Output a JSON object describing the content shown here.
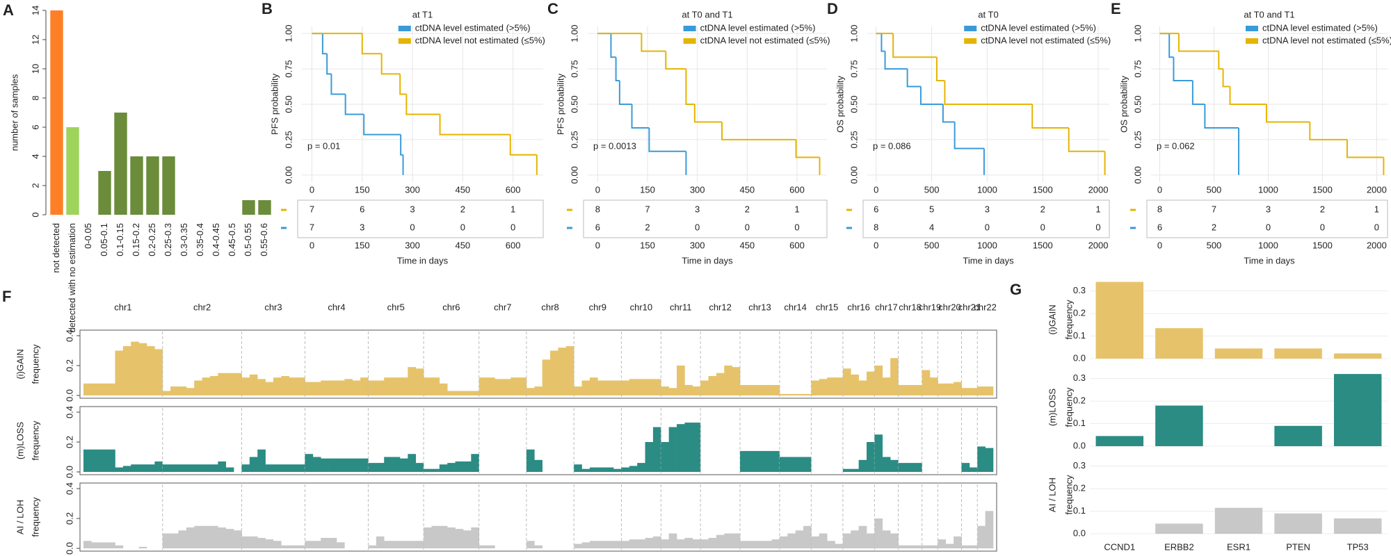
{
  "chart_data": [
    {
      "type": "bar",
      "label": "A",
      "ylabel": "number of samples",
      "categories": [
        "not detected",
        "detected with no estimation",
        "0-0.05",
        "0.05-0.1",
        "0.1-0.15",
        "0.15-0.2",
        "0.2-0.25",
        "0.25-0.3",
        "0.3-0.35",
        "0.35-0.4",
        "0.4-0.45",
        "0.45-0.5",
        "0.5-0.55",
        "0.55-0.6"
      ],
      "values": [
        14,
        6,
        0,
        3,
        7,
        4,
        4,
        4,
        0,
        0,
        0,
        0,
        1,
        1
      ],
      "colors": [
        "#ff7f27",
        "#9ed45c",
        "#6b8c3a",
        "#6b8c3a",
        "#6b8c3a",
        "#6b8c3a",
        "#6b8c3a",
        "#6b8c3a",
        "#6b8c3a",
        "#6b8c3a",
        "#6b8c3a",
        "#6b8c3a",
        "#6b8c3a",
        "#6b8c3a"
      ],
      "ylim": [
        0,
        14
      ],
      "yticks": [
        0,
        2,
        4,
        6,
        8,
        10,
        12,
        14
      ]
    },
    {
      "type": "km",
      "label": "B",
      "title": "at T1",
      "ylabel": "PFS probability",
      "xlabel": "Time in days",
      "annotation": "p = 0.01",
      "xlim": [
        -30,
        690
      ],
      "xticks": [
        0,
        150,
        300,
        450,
        600
      ],
      "ylim": [
        -0.05,
        1.05
      ],
      "yticks": [
        {
          "value": 0,
          "label": "0.00"
        },
        {
          "value": 0.25,
          "label": "0.25"
        },
        {
          "value": 0.5,
          "label": "0.50"
        },
        {
          "value": 0.75,
          "label": "0.75"
        },
        {
          "value": 1,
          "label": "1.00"
        }
      ],
      "grid": true,
      "series": [
        {
          "name": "ctDNA level estimated (>5%)",
          "color": "#3a9ad9",
          "x": [
            0,
            32,
            45,
            58,
            100,
            155,
            265,
            272
          ],
          "values": [
            1,
            0.857,
            0.714,
            0.571,
            0.429,
            0.286,
            0.143,
            0
          ],
          "at_risk": [
            7,
            3,
            0,
            0,
            0
          ]
        },
        {
          "name": "ctDNA level not estimated (≤5%)",
          "color": "#e6b400",
          "x": [
            0,
            150,
            208,
            263,
            282,
            382,
            592,
            671
          ],
          "values": [
            1,
            0.857,
            0.714,
            0.571,
            0.429,
            0.286,
            0.143,
            0
          ],
          "at_risk": [
            7,
            6,
            3,
            2,
            1
          ]
        }
      ]
    },
    {
      "type": "km",
      "label": "C",
      "title": "at T0 and T1",
      "ylabel": "PFS probability",
      "xlabel": "Time in days",
      "annotation": "p = 0.0013",
      "xlim": [
        -30,
        690
      ],
      "xticks": [
        0,
        150,
        300,
        450,
        600
      ],
      "ylim": [
        -0.05,
        1.05
      ],
      "yticks": [
        {
          "value": 0,
          "label": "0.00"
        },
        {
          "value": 0.25,
          "label": "0.25"
        },
        {
          "value": 0.5,
          "label": "0.50"
        },
        {
          "value": 0.75,
          "label": "0.75"
        },
        {
          "value": 1,
          "label": "1.00"
        }
      ],
      "grid": true,
      "series": [
        {
          "name": "ctDNA level estimated (>5%)",
          "color": "#3a9ad9",
          "x": [
            0,
            40,
            55,
            66,
            103,
            155,
            266
          ],
          "values": [
            1,
            0.833,
            0.667,
            0.5,
            0.333,
            0.167,
            0
          ],
          "at_risk": [
            6,
            2,
            0,
            0,
            0
          ]
        },
        {
          "name": "ctDNA level not estimated (≤5%)",
          "color": "#e6b400",
          "x": [
            0,
            132,
            205,
            266,
            292,
            374,
            597,
            668
          ],
          "values": [
            1,
            0.875,
            0.75,
            0.5,
            0.375,
            0.25,
            0.125,
            0
          ],
          "at_risk": [
            8,
            7,
            3,
            2,
            1
          ]
        }
      ]
    },
    {
      "type": "km",
      "label": "D",
      "title": "at T0",
      "ylabel": "OS probability",
      "xlabel": "Time in days",
      "annotation": "p = 0.086",
      "xlim": [
        -80,
        2100
      ],
      "xticks": [
        0,
        500,
        1000,
        1500,
        2000
      ],
      "ylim": [
        -0.05,
        1.05
      ],
      "yticks": [
        {
          "value": 0,
          "label": "0.00"
        },
        {
          "value": 0.25,
          "label": "0.25"
        },
        {
          "value": 0.5,
          "label": "0.50"
        },
        {
          "value": 0.75,
          "label": "0.75"
        },
        {
          "value": 1,
          "label": "1.00"
        }
      ],
      "grid": true,
      "series": [
        {
          "name": "ctDNA level estimated (>5%)",
          "color": "#3a9ad9",
          "x": [
            0,
            48,
            80,
            281,
            402,
            602,
            707,
            972
          ],
          "values": [
            1,
            0.875,
            0.75,
            0.625,
            0.5,
            0.375,
            0.1875,
            0
          ],
          "at_risk": [
            8,
            4,
            0,
            0,
            0
          ]
        },
        {
          "name": "ctDNA level not estimated (≤5%)",
          "color": "#e6b400",
          "x": [
            0,
            153,
            546,
            618,
            1406,
            1735,
            2060
          ],
          "values": [
            1,
            0.833,
            0.667,
            0.5,
            0.333,
            0.167,
            0
          ],
          "at_risk": [
            6,
            5,
            3,
            2,
            1
          ]
        }
      ]
    },
    {
      "type": "km",
      "label": "E",
      "title": "at T0 and T1",
      "ylabel": "OS probability",
      "xlabel": "Time in days",
      "annotation": "p = 0.062",
      "xlim": [
        -80,
        2100
      ],
      "xticks": [
        0,
        500,
        1000,
        1500,
        2000
      ],
      "ylim": [
        -0.05,
        1.05
      ],
      "yticks": [
        {
          "value": 0,
          "label": "0.00"
        },
        {
          "value": 0.25,
          "label": "0.25"
        },
        {
          "value": 0.5,
          "label": "0.50"
        },
        {
          "value": 0.75,
          "label": "0.75"
        },
        {
          "value": 1,
          "label": "1.00"
        }
      ],
      "grid": true,
      "series": [
        {
          "name": "ctDNA level estimated (>5%)",
          "color": "#3a9ad9",
          "x": [
            0,
            88,
            128,
            304,
            416,
            728
          ],
          "values": [
            1,
            0.833,
            0.667,
            0.5,
            0.333,
            0
          ],
          "at_risk": [
            6,
            2,
            0,
            0,
            0
          ]
        },
        {
          "name": "ctDNA level not estimated (≤5%)",
          "color": "#e6b400",
          "x": [
            0,
            176,
            544,
            584,
            648,
            984,
            1384,
            1728,
            2064
          ],
          "values": [
            1,
            0.875,
            0.75,
            0.625,
            0.5,
            0.375,
            0.25,
            0.125,
            0
          ],
          "at_risk": [
            8,
            7,
            3,
            2,
            1
          ]
        }
      ]
    },
    {
      "type": "genome",
      "label": "F",
      "chromosomes": [
        "chr1",
        "chr2",
        "chr3",
        "chr4",
        "chr5",
        "chr6",
        "chr7",
        "chr8",
        "chr9",
        "chr10",
        "chr11",
        "chr12",
        "chr13",
        "chr14",
        "chr15",
        "chr16",
        "chr17",
        "chr18",
        "chr19",
        "chr20",
        "chr21",
        "chr22"
      ],
      "ylim": [
        0,
        0.4
      ],
      "yticks": [
        {
          "value": 0,
          "label": "0.0"
        },
        {
          "value": 0.2,
          "label": "0.2"
        },
        {
          "value": 0.4,
          "label": "0.4"
        }
      ],
      "rows": [
        {
          "ylabel": [
            "(i)GAIN",
            "frequency"
          ],
          "color": "#e6c36a",
          "values": [
            [
              0.08,
              0.08,
              0.08,
              0.08,
              0.3,
              0.33,
              0.36,
              0.35,
              0.33,
              0.31
            ],
            [
              0.03,
              0.06,
              0.06,
              0.05,
              0.1,
              0.12,
              0.13,
              0.15,
              0.15,
              0.15
            ],
            [
              0.12,
              0.14,
              0.11,
              0.09,
              0.12,
              0.13,
              0.12,
              0.12
            ],
            [
              0.09,
              0.09,
              0.1,
              0.1,
              0.1,
              0.11,
              0.1,
              0.12
            ],
            [
              0.1,
              0.1,
              0.12,
              0.12,
              0.12,
              0.19,
              0.18
            ],
            [
              0.12,
              0.12,
              0.08,
              0.03,
              0.03,
              0.03,
              0.03
            ],
            [
              0.12,
              0.12,
              0.11,
              0.11,
              0.12,
              0.12
            ],
            [
              0.05,
              0.06,
              0.24,
              0.3,
              0.32,
              0.33
            ],
            [
              0.06,
              0.1,
              0.12,
              0.1,
              0.1,
              0.1
            ],
            [
              0.1,
              0.11,
              0.11,
              0.11,
              0.11
            ],
            [
              0.06,
              0.05,
              0.2,
              0.07,
              0.06
            ],
            [
              0.1,
              0.13,
              0.15,
              0.2,
              0.19
            ],
            [
              0.07,
              0.07,
              0.07,
              0.07,
              0.07
            ],
            [
              0.01,
              0.01,
              0.01,
              0.01
            ],
            [
              0.1,
              0.11,
              0.12,
              0.12
            ],
            [
              0.18,
              0.14,
              0.1,
              0.16
            ],
            [
              0.2,
              0.12,
              0.25
            ],
            [
              0.07,
              0.07,
              0.07
            ],
            [
              0.17,
              0.12
            ],
            [
              0.08,
              0.08,
              0.09
            ],
            [
              0.05,
              0.05
            ],
            [
              0.06,
              0.06
            ]
          ]
        },
        {
          "ylabel": [
            "(m)LOSS",
            "frequency"
          ],
          "color": "#2b8c84",
          "values": [
            [
              0.15,
              0.15,
              0.15,
              0.15,
              0.03,
              0.04,
              0.05,
              0.05,
              0.05,
              0.07
            ],
            [
              0.05,
              0.05,
              0.05,
              0.05,
              0.05,
              0.05,
              0.05,
              0.07,
              0.03,
              0
            ],
            [
              0.05,
              0.1,
              0.15,
              0.05,
              0.05,
              0.05,
              0.05,
              0.05
            ],
            [
              0.12,
              0.1,
              0.09,
              0.09,
              0.09,
              0.09,
              0.09,
              0.09
            ],
            [
              0.06,
              0.06,
              0.1,
              0.1,
              0.09,
              0.12,
              0.06
            ],
            [
              0.02,
              0.02,
              0.05,
              0.06,
              0.07,
              0.07,
              0.12
            ],
            [
              0,
              0,
              0,
              0,
              0,
              0
            ],
            [
              0.15,
              0.08,
              0,
              0,
              0,
              0
            ],
            [
              0.05,
              0.02,
              0.03,
              0.03,
              0.03,
              0.02
            ],
            [
              0.03,
              0.04,
              0.06,
              0.2,
              0.3
            ],
            [
              0.2,
              0.3,
              0.32,
              0.33,
              0.33
            ],
            [
              0,
              0,
              0,
              0,
              0
            ],
            [
              0.14,
              0.14,
              0.14,
              0.14,
              0.14
            ],
            [
              0.1,
              0.1,
              0.1,
              0.1
            ],
            [
              0,
              0,
              0,
              0
            ],
            [
              0.02,
              0.02,
              0.08,
              0.2
            ],
            [
              0.25,
              0.1,
              0.08
            ],
            [
              0.06,
              0.06,
              0.06
            ],
            [
              0,
              0
            ],
            [
              0,
              0,
              0
            ],
            [
              0.06,
              0.03
            ],
            [
              0.17,
              0.16
            ]
          ]
        },
        {
          "ylabel": [
            "AI / LOH",
            "frequency"
          ],
          "color": "#c8c8c8",
          "values": [
            [
              0.05,
              0.04,
              0.04,
              0.04,
              0.02,
              0,
              0,
              0.01,
              0,
              0
            ],
            [
              0.1,
              0.1,
              0.12,
              0.14,
              0.15,
              0.15,
              0.15,
              0.14,
              0.13,
              0.12
            ],
            [
              0.08,
              0.08,
              0.07,
              0.06,
              0.05,
              0.02,
              0.02,
              0.02
            ],
            [
              0.05,
              0.05,
              0.07,
              0.07,
              0.04,
              0,
              0,
              0
            ],
            [
              0.02,
              0.08,
              0.05,
              0.05,
              0.05,
              0.05,
              0.05
            ],
            [
              0.14,
              0.15,
              0.15,
              0.14,
              0.13,
              0.12,
              0.14
            ],
            [
              0.02,
              0.02,
              0,
              0,
              0,
              0
            ],
            [
              0.05,
              0.02,
              0,
              0,
              0,
              0
            ],
            [
              0.03,
              0.04,
              0.05,
              0.05,
              0.05,
              0.05
            ],
            [
              0.05,
              0.06,
              0.06,
              0.07,
              0.08
            ],
            [
              0.06,
              0.1,
              0.06,
              0.07,
              0.06
            ],
            [
              0.06,
              0.07,
              0.09,
              0.1,
              0.1
            ],
            [
              0.05,
              0.05,
              0.05,
              0.05,
              0.06
            ],
            [
              0.08,
              0.1,
              0.12,
              0.15
            ],
            [
              0.08,
              0.1,
              0.05,
              0.03
            ],
            [
              0.1,
              0.12,
              0.15,
              0.1
            ],
            [
              0.2,
              0.12,
              0.1
            ],
            [
              0.02,
              0.02,
              0.02
            ],
            [
              0.02,
              0.02
            ],
            [
              0.06,
              0.03,
              0.08
            ],
            [
              0.02,
              0.02
            ],
            [
              0.15,
              0.25
            ]
          ]
        }
      ]
    },
    {
      "type": "bar-rows",
      "label": "G",
      "categories": [
        "CCND1",
        "ERBB2",
        "ESR1",
        "PTEN",
        "TP53"
      ],
      "ylim": [
        0,
        0.345
      ],
      "yticks": [
        {
          "value": 0,
          "label": "0.0"
        },
        {
          "value": 0.1,
          "label": "0.1"
        },
        {
          "value": 0.2,
          "label": "0.2"
        },
        {
          "value": 0.3,
          "label": "0.3"
        }
      ],
      "grid": true,
      "rows": [
        {
          "ylabel": [
            "(i)GAIN",
            "frequency"
          ],
          "color": "#e6c36a",
          "values": [
            0.34,
            0.135,
            0.045,
            0.045,
            0.023
          ]
        },
        {
          "ylabel": [
            "(m)LOSS",
            "frequency"
          ],
          "color": "#2b8c84",
          "values": [
            0.045,
            0.18,
            0,
            0.09,
            0.32
          ]
        },
        {
          "ylabel": [
            "AI / LOH",
            "frequency"
          ],
          "color": "#c8c8c8",
          "values": [
            0,
            0.045,
            0.115,
            0.09,
            0.068
          ]
        }
      ]
    }
  ]
}
